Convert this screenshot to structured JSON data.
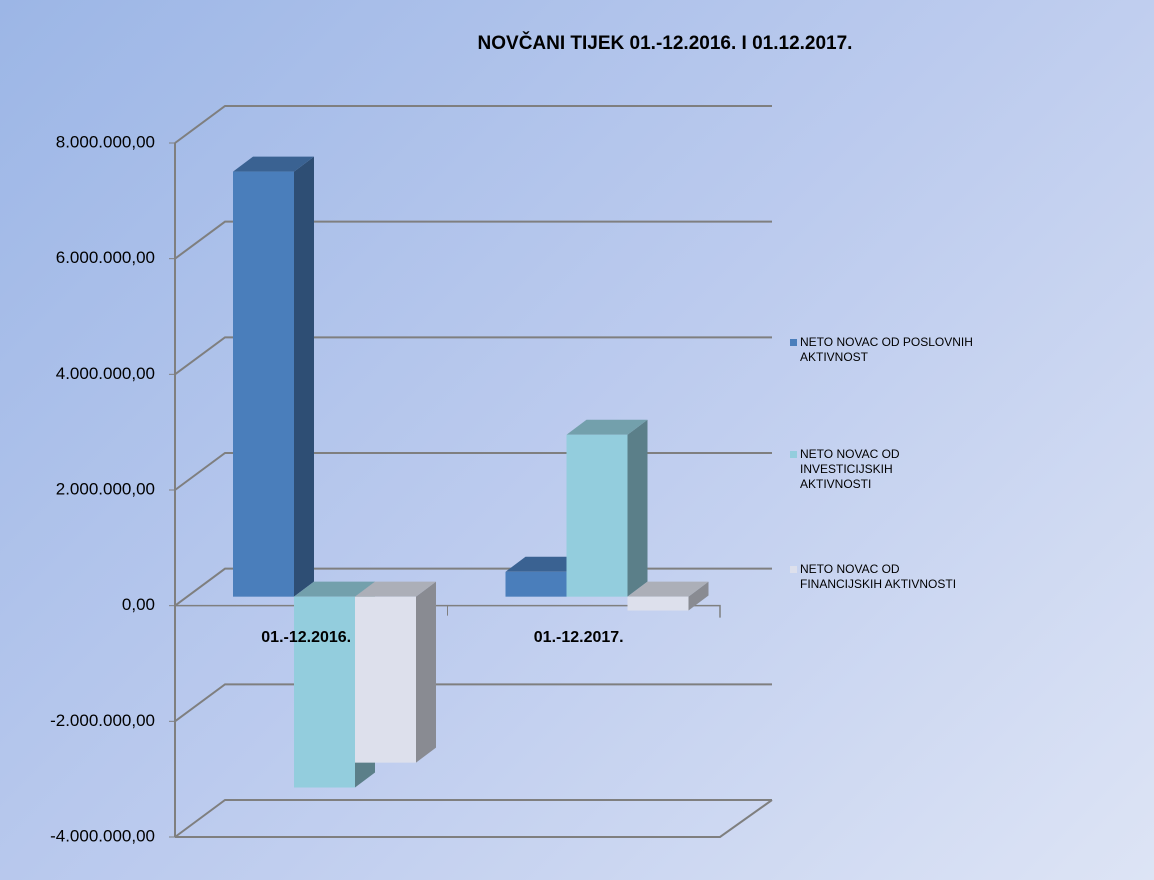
{
  "chart_data": {
    "type": "bar3d",
    "title": "NOVČANI TIJEK 01.-12.2016.  I  01.12.2017.",
    "categories": [
      "01.-12.2016.",
      "01.-12.2017."
    ],
    "series": [
      {
        "name": "NETO NOVAC OD POSLOVNIH AKTIVNOST",
        "color": "#4a7ebb",
        "values": [
          7350000,
          430000
        ]
      },
      {
        "name": "NETO NOVAC OD INVESTICIJSKIH AKTIVNOSTI",
        "color": "#93cddd",
        "values": [
          -3300000,
          2800000
        ]
      },
      {
        "name": "NETO NOVAC OD FINANCIJSKIH AKTIVNOSTI",
        "color": "#dde0ec",
        "values": [
          -2870000,
          -240000
        ]
      }
    ],
    "ylim": [
      -4000000,
      8000000
    ],
    "yticks": [
      {
        "value": -4000000,
        "label": "-4.000.000,00"
      },
      {
        "value": -2000000,
        "label": "-2.000.000,00"
      },
      {
        "value": 0,
        "label": "0,00"
      },
      {
        "value": 2000000,
        "label": "2.000.000,00"
      },
      {
        "value": 4000000,
        "label": "4.000.000,00"
      },
      {
        "value": 6000000,
        "label": "6.000.000,00"
      },
      {
        "value": 8000000,
        "label": "8.000.000,00"
      }
    ],
    "grid": true,
    "legend": "right"
  }
}
